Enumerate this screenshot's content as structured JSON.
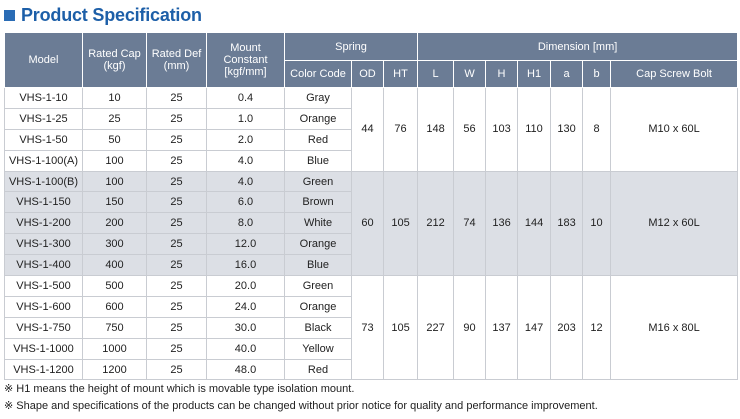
{
  "title": "Product Specification",
  "headers": {
    "model": "Model",
    "rated_cap": "Rated Cap",
    "rated_cap_unit": "(kgf)",
    "rated_def": "Rated Def",
    "rated_def_unit": "(mm)",
    "mount_constant_1": "Mount",
    "mount_constant_2": "Constant",
    "mount_constant_unit": "[kgf/mm]",
    "spring": "Spring",
    "dimension": "Dimension [mm]",
    "color_code": "Color Code",
    "od": "OD",
    "ht": "HT",
    "l": "L",
    "w": "W",
    "h": "H",
    "h1": "H1",
    "a": "a",
    "b": "b",
    "cap_screw_bolt": "Cap Screw Bolt"
  },
  "groups": [
    {
      "od": "44",
      "ht": "76",
      "l": "148",
      "w": "56",
      "h": "103",
      "h1": "110",
      "a": "130",
      "b": "8",
      "bolt": "M10 x 60L",
      "rows": [
        {
          "model": "VHS-1-10",
          "cap": "10",
          "def": "25",
          "constant": "0.4",
          "color": "Gray"
        },
        {
          "model": "VHS-1-25",
          "cap": "25",
          "def": "25",
          "constant": "1.0",
          "color": "Orange"
        },
        {
          "model": "VHS-1-50",
          "cap": "50",
          "def": "25",
          "constant": "2.0",
          "color": "Red"
        },
        {
          "model": "VHS-1-100(A)",
          "cap": "100",
          "def": "25",
          "constant": "4.0",
          "color": "Blue"
        }
      ]
    },
    {
      "od": "60",
      "ht": "105",
      "l": "212",
      "w": "74",
      "h": "136",
      "h1": "144",
      "a": "183",
      "b": "10",
      "bolt": "M12 x 60L",
      "rows": [
        {
          "model": "VHS-1-100(B)",
          "cap": "100",
          "def": "25",
          "constant": "4.0",
          "color": "Green"
        },
        {
          "model": "VHS-1-150",
          "cap": "150",
          "def": "25",
          "constant": "6.0",
          "color": "Brown"
        },
        {
          "model": "VHS-1-200",
          "cap": "200",
          "def": "25",
          "constant": "8.0",
          "color": "White"
        },
        {
          "model": "VHS-1-300",
          "cap": "300",
          "def": "25",
          "constant": "12.0",
          "color": "Orange"
        },
        {
          "model": "VHS-1-400",
          "cap": "400",
          "def": "25",
          "constant": "16.0",
          "color": "Blue"
        }
      ]
    },
    {
      "od": "73",
      "ht": "105",
      "l": "227",
      "w": "90",
      "h": "137",
      "h1": "147",
      "a": "203",
      "b": "12",
      "bolt": "M16 x 80L",
      "rows": [
        {
          "model": "VHS-1-500",
          "cap": "500",
          "def": "25",
          "constant": "20.0",
          "color": "Green"
        },
        {
          "model": "VHS-1-600",
          "cap": "600",
          "def": "25",
          "constant": "24.0",
          "color": "Orange"
        },
        {
          "model": "VHS-1-750",
          "cap": "750",
          "def": "25",
          "constant": "30.0",
          "color": "Black"
        },
        {
          "model": "VHS-1-1000",
          "cap": "1000",
          "def": "25",
          "constant": "40.0",
          "color": "Yellow"
        },
        {
          "model": "VHS-1-1200",
          "cap": "1200",
          "def": "25",
          "constant": "48.0",
          "color": "Red"
        }
      ]
    }
  ],
  "notes": [
    "※ H1 means the height of mount which is movable type isolation mount.",
    "※ Shape and specifications of the products can be changed without prior notice for quality and performance improvement."
  ],
  "colors": {
    "title": "#1d5fa8",
    "header_bg": "#6b7c95",
    "band_alt": "#dcdfe5",
    "border": "#c9ccd2"
  }
}
